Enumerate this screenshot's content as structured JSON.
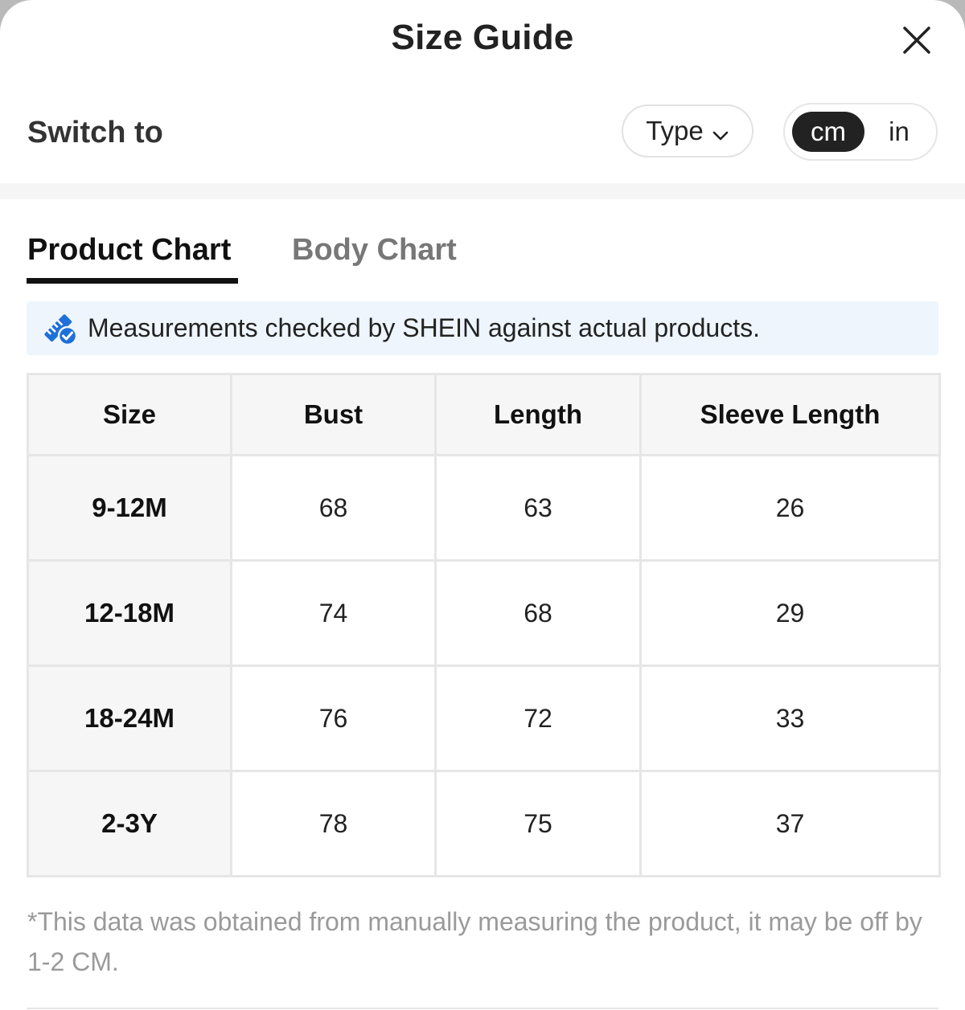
{
  "header": {
    "title": "Size Guide",
    "close_icon": "close-icon"
  },
  "switch": {
    "label": "Switch to",
    "type_label": "Type",
    "type_icon": "chevron-down-icon",
    "units": {
      "cm": "cm",
      "in": "in",
      "selected": "cm"
    }
  },
  "tabs": [
    {
      "label": "Product Chart",
      "active": true
    },
    {
      "label": "Body Chart",
      "active": false
    }
  ],
  "notice": {
    "icon": "ruler-verified-icon",
    "text": "Measurements checked by SHEIN against actual products."
  },
  "table": {
    "headers": [
      "Size",
      "Bust",
      "Length",
      "Sleeve Length"
    ],
    "rows": [
      [
        "9-12M",
        "68",
        "63",
        "26"
      ],
      [
        "12-18M",
        "74",
        "68",
        "29"
      ],
      [
        "18-24M",
        "76",
        "72",
        "33"
      ],
      [
        "2-3Y",
        "78",
        "75",
        "37"
      ]
    ]
  },
  "footnote": "*This data was obtained from manually measuring the product, it may be off by 1-2 CM.",
  "colors": {
    "accent_dark": "#222222",
    "notice_bg": "#eef5fd",
    "notice_icon_blue": "#1e6fd9",
    "cell_border": "#e6e6e6",
    "header_bg": "#f6f6f6",
    "muted_text": "#9a9a9a"
  }
}
